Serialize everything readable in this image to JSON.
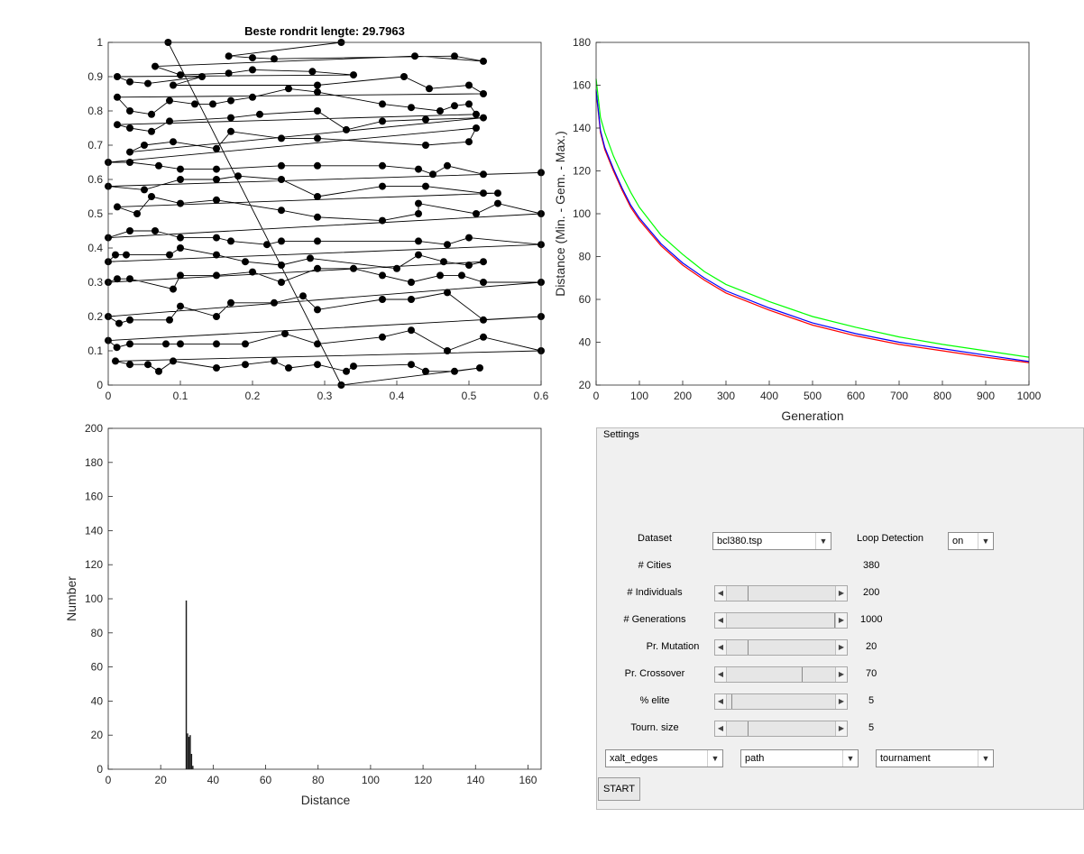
{
  "tour_plot": {
    "title": "Beste rondrit lengte: 29.7963",
    "x_ticks": [
      "0",
      "0.1",
      "0.2",
      "0.3",
      "0.4",
      "0.5",
      "0.6"
    ],
    "y_ticks": [
      "0",
      "0.1",
      "0.2",
      "0.3",
      "0.4",
      "0.5",
      "0.6",
      "0.7",
      "0.8",
      "0.9",
      "1"
    ],
    "xlim": [
      0,
      0.6
    ],
    "ylim": [
      0,
      1
    ]
  },
  "convergence_plot": {
    "xlabel": "Generation",
    "ylabel": "Distance (Min. - Gem. - Max.)",
    "x_ticks": [
      "0",
      "100",
      "200",
      "300",
      "400",
      "500",
      "600",
      "700",
      "800",
      "900",
      "1000"
    ],
    "y_ticks": [
      "20",
      "40",
      "60",
      "80",
      "100",
      "120",
      "140",
      "160",
      "180"
    ],
    "colors": {
      "min": "#ff0000",
      "mean": "#0000ff",
      "max": "#00ff00"
    }
  },
  "histogram_plot": {
    "xlabel": "Distance",
    "ylabel": "Number",
    "x_ticks": [
      "0",
      "20",
      "40",
      "60",
      "80",
      "100",
      "120",
      "140",
      "160"
    ],
    "y_ticks": [
      "0",
      "20",
      "40",
      "60",
      "80",
      "100",
      "120",
      "140",
      "160",
      "180",
      "200"
    ]
  },
  "chart_data": [
    {
      "type": "scatter",
      "title": "Beste rondrit lengte: 29.7963",
      "xlim": [
        0,
        0.6
      ],
      "ylim": [
        0,
        1
      ],
      "points": [
        [
          0.083,
          1.0
        ],
        [
          0.323,
          1.0
        ],
        [
          0.167,
          0.96
        ],
        [
          0.2,
          0.955
        ],
        [
          0.23,
          0.952
        ],
        [
          0.48,
          0.96
        ],
        [
          0.52,
          0.945
        ],
        [
          0.425,
          0.96
        ],
        [
          0.065,
          0.93
        ],
        [
          0.1,
          0.905
        ],
        [
          0.167,
          0.91
        ],
        [
          0.2,
          0.92
        ],
        [
          0.283,
          0.915
        ],
        [
          0.34,
          0.905
        ],
        [
          0.0125,
          0.9
        ],
        [
          0.03,
          0.885
        ],
        [
          0.055,
          0.88
        ],
        [
          0.13,
          0.9
        ],
        [
          0.09,
          0.875
        ],
        [
          0.29,
          0.875
        ],
        [
          0.41,
          0.9
        ],
        [
          0.445,
          0.865
        ],
        [
          0.5,
          0.875
        ],
        [
          0.52,
          0.85
        ],
        [
          0.0125,
          0.84
        ],
        [
          0.03,
          0.8
        ],
        [
          0.06,
          0.79
        ],
        [
          0.085,
          0.83
        ],
        [
          0.12,
          0.82
        ],
        [
          0.145,
          0.82
        ],
        [
          0.17,
          0.83
        ],
        [
          0.2,
          0.84
        ],
        [
          0.25,
          0.865
        ],
        [
          0.29,
          0.855
        ],
        [
          0.38,
          0.82
        ],
        [
          0.42,
          0.81
        ],
        [
          0.46,
          0.8
        ],
        [
          0.48,
          0.815
        ],
        [
          0.5,
          0.82
        ],
        [
          0.51,
          0.79
        ],
        [
          0.0125,
          0.76
        ],
        [
          0.03,
          0.75
        ],
        [
          0.06,
          0.74
        ],
        [
          0.085,
          0.77
        ],
        [
          0.17,
          0.78
        ],
        [
          0.21,
          0.79
        ],
        [
          0.29,
          0.8
        ],
        [
          0.33,
          0.745
        ],
        [
          0.38,
          0.77
        ],
        [
          0.44,
          0.775
        ],
        [
          0.52,
          0.78
        ],
        [
          0.03,
          0.68
        ],
        [
          0.05,
          0.7
        ],
        [
          0.09,
          0.71
        ],
        [
          0.15,
          0.69
        ],
        [
          0.17,
          0.74
        ],
        [
          0.24,
          0.72
        ],
        [
          0.29,
          0.72
        ],
        [
          0.44,
          0.7
        ],
        [
          0.5,
          0.71
        ],
        [
          0.51,
          0.75
        ],
        [
          0.0,
          0.65
        ],
        [
          0.03,
          0.65
        ],
        [
          0.07,
          0.64
        ],
        [
          0.1,
          0.63
        ],
        [
          0.15,
          0.63
        ],
        [
          0.24,
          0.64
        ],
        [
          0.29,
          0.64
        ],
        [
          0.38,
          0.64
        ],
        [
          0.43,
          0.63
        ],
        [
          0.45,
          0.615
        ],
        [
          0.47,
          0.64
        ],
        [
          0.52,
          0.615
        ],
        [
          0.6,
          0.62
        ],
        [
          0.0,
          0.58
        ],
        [
          0.05,
          0.57
        ],
        [
          0.1,
          0.6
        ],
        [
          0.15,
          0.6
        ],
        [
          0.18,
          0.61
        ],
        [
          0.24,
          0.6
        ],
        [
          0.29,
          0.55
        ],
        [
          0.38,
          0.58
        ],
        [
          0.44,
          0.58
        ],
        [
          0.52,
          0.56
        ],
        [
          0.54,
          0.56
        ],
        [
          0.0125,
          0.52
        ],
        [
          0.04,
          0.5
        ],
        [
          0.06,
          0.55
        ],
        [
          0.1,
          0.53
        ],
        [
          0.15,
          0.54
        ],
        [
          0.24,
          0.51
        ],
        [
          0.29,
          0.49
        ],
        [
          0.38,
          0.48
        ],
        [
          0.43,
          0.5
        ],
        [
          0.43,
          0.53
        ],
        [
          0.51,
          0.5
        ],
        [
          0.54,
          0.53
        ],
        [
          0.6,
          0.5
        ],
        [
          0.0,
          0.43
        ],
        [
          0.03,
          0.45
        ],
        [
          0.065,
          0.45
        ],
        [
          0.1,
          0.43
        ],
        [
          0.15,
          0.43
        ],
        [
          0.17,
          0.42
        ],
        [
          0.22,
          0.41
        ],
        [
          0.24,
          0.42
        ],
        [
          0.29,
          0.42
        ],
        [
          0.43,
          0.42
        ],
        [
          0.47,
          0.41
        ],
        [
          0.5,
          0.43
        ],
        [
          0.6,
          0.41
        ],
        [
          0.0,
          0.36
        ],
        [
          0.01,
          0.38
        ],
        [
          0.025,
          0.38
        ],
        [
          0.085,
          0.38
        ],
        [
          0.1,
          0.4
        ],
        [
          0.15,
          0.38
        ],
        [
          0.19,
          0.36
        ],
        [
          0.24,
          0.35
        ],
        [
          0.28,
          0.37
        ],
        [
          0.4,
          0.34
        ],
        [
          0.43,
          0.38
        ],
        [
          0.465,
          0.36
        ],
        [
          0.5,
          0.35
        ],
        [
          0.52,
          0.36
        ],
        [
          0.0,
          0.3
        ],
        [
          0.0125,
          0.31
        ],
        [
          0.03,
          0.31
        ],
        [
          0.09,
          0.28
        ],
        [
          0.1,
          0.32
        ],
        [
          0.15,
          0.32
        ],
        [
          0.2,
          0.33
        ],
        [
          0.24,
          0.3
        ],
        [
          0.29,
          0.34
        ],
        [
          0.34,
          0.34
        ],
        [
          0.38,
          0.32
        ],
        [
          0.42,
          0.3
        ],
        [
          0.46,
          0.32
        ],
        [
          0.49,
          0.32
        ],
        [
          0.52,
          0.3
        ],
        [
          0.6,
          0.3
        ],
        [
          0.0,
          0.2
        ],
        [
          0.015,
          0.18
        ],
        [
          0.03,
          0.19
        ],
        [
          0.085,
          0.19
        ],
        [
          0.1,
          0.23
        ],
        [
          0.15,
          0.2
        ],
        [
          0.17,
          0.24
        ],
        [
          0.23,
          0.24
        ],
        [
          0.27,
          0.26
        ],
        [
          0.29,
          0.22
        ],
        [
          0.38,
          0.25
        ],
        [
          0.42,
          0.25
        ],
        [
          0.47,
          0.27
        ],
        [
          0.52,
          0.19
        ],
        [
          0.6,
          0.2
        ],
        [
          0.0,
          0.13
        ],
        [
          0.012,
          0.11
        ],
        [
          0.03,
          0.12
        ],
        [
          0.08,
          0.12
        ],
        [
          0.1,
          0.12
        ],
        [
          0.15,
          0.12
        ],
        [
          0.19,
          0.12
        ],
        [
          0.245,
          0.15
        ],
        [
          0.29,
          0.12
        ],
        [
          0.38,
          0.14
        ],
        [
          0.42,
          0.16
        ],
        [
          0.47,
          0.1
        ],
        [
          0.52,
          0.14
        ],
        [
          0.6,
          0.1
        ],
        [
          0.01,
          0.07
        ],
        [
          0.03,
          0.06
        ],
        [
          0.055,
          0.06
        ],
        [
          0.07,
          0.04
        ],
        [
          0.09,
          0.07
        ],
        [
          0.15,
          0.05
        ],
        [
          0.19,
          0.06
        ],
        [
          0.23,
          0.07
        ],
        [
          0.25,
          0.05
        ],
        [
          0.29,
          0.06
        ],
        [
          0.33,
          0.04
        ],
        [
          0.34,
          0.055
        ],
        [
          0.42,
          0.06
        ],
        [
          0.44,
          0.04
        ],
        [
          0.48,
          0.04
        ],
        [
          0.515,
          0.05
        ],
        [
          0.323,
          0.0
        ]
      ]
    },
    {
      "type": "line",
      "xlabel": "Generation",
      "ylabel": "Distance (Min. - Gem. - Max.)",
      "xlim": [
        0,
        1000
      ],
      "ylim": [
        20,
        180
      ],
      "x": [
        0,
        10,
        20,
        40,
        60,
        80,
        100,
        150,
        200,
        250,
        300,
        400,
        500,
        600,
        700,
        800,
        900,
        1000
      ],
      "series": [
        {
          "values": [
            157,
            138,
            130,
            120,
            111,
            103,
            97,
            85,
            76,
            69,
            63,
            55,
            48,
            43,
            39,
            36,
            33,
            30.5
          ]
        },
        {
          "values": [
            158,
            139,
            131,
            121,
            112,
            104,
            98,
            86,
            77,
            70,
            64,
            56,
            49,
            44,
            40,
            37,
            34,
            31
          ]
        },
        {
          "values": [
            163,
            145,
            138,
            127,
            118,
            110,
            103,
            90,
            81,
            73,
            67,
            59,
            52,
            47,
            42.5,
            39,
            36,
            33
          ]
        }
      ]
    },
    {
      "type": "bar",
      "xlabel": "Distance",
      "ylabel": "Number",
      "xlim": [
        0,
        165
      ],
      "ylim": [
        0,
        200
      ],
      "categories": [
        29.5,
        30,
        30.5,
        31,
        31.5,
        32
      ],
      "values": [
        99,
        21,
        19,
        20,
        9,
        2
      ]
    }
  ],
  "settings": {
    "title": "Settings",
    "dataset_label": "Dataset",
    "dataset_value": "bcl380.tsp",
    "loop_detection_label": "Loop Detection",
    "loop_detection_value": "on",
    "cities_label": "# Cities",
    "cities_value": "380",
    "individuals_label": "# Individuals",
    "individuals_value": "200",
    "individuals_level": 0.2,
    "generations_label": "# Generations",
    "generations_value": "1000",
    "generations_level": 1.0,
    "mutation_label": "Pr. Mutation",
    "mutation_value": "20",
    "mutation_level": 0.2,
    "crossover_label": "Pr. Crossover",
    "crossover_value": "70",
    "crossover_level": 0.7,
    "elite_label": "% elite",
    "elite_value": "5",
    "elite_level": 0.05,
    "tourn_label": "Tourn. size",
    "tourn_value": "5",
    "tourn_level": 0.2,
    "crossover_select": "xalt_edges",
    "representation_select": "path",
    "selection_select": "tournament",
    "start_label": "START"
  }
}
